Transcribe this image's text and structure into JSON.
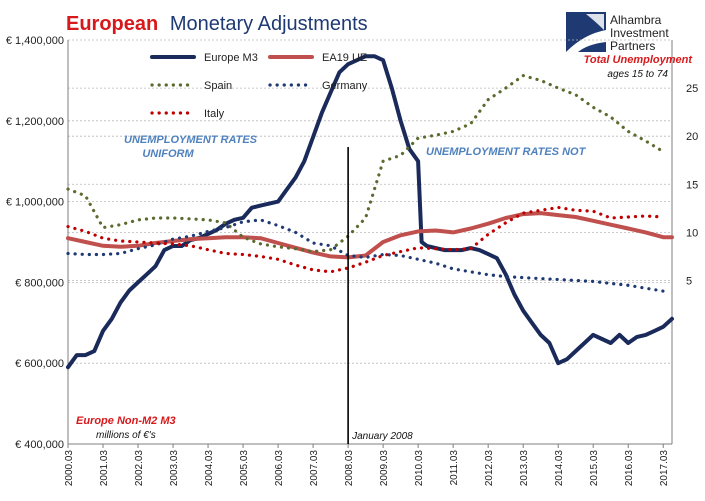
{
  "title": {
    "part1": "European",
    "part2": "Monetary Adjustments",
    "part1_color": "#d7191c",
    "part2_color": "#1f3a73"
  },
  "logo": {
    "lines": [
      "Alhambra",
      "Investment",
      "Partners"
    ],
    "mark_color": "#1f3a73"
  },
  "colors": {
    "m3": "#1a2a5a",
    "ea19": "#c0504d",
    "spain": "#5b6b2f",
    "germany": "#1f3a73",
    "italy": "#c00000",
    "blue_text": "#4f81bd",
    "red_text": "#d7191c",
    "grid": "#b9b9b9"
  },
  "annotations": {
    "unemp_uniform_1": "UNEMPLOYMENT RATES",
    "unemp_uniform_2": "UNIFORM",
    "unemp_not": "UNEMPLOYMENT RATES NOT",
    "total_unemp": "Total Unemployment",
    "ages": "ages 15  to 74",
    "m3_label": "Europe Non-M2 M3",
    "m3_units": "millions of €'s",
    "jan2008": "January 2008"
  },
  "chart_data": {
    "type": "line",
    "x_ticks": [
      "2000.03",
      "2001.03",
      "2002.03",
      "2003.03",
      "2004.03",
      "2005.03",
      "2006.03",
      "2007.03",
      "2008.03",
      "2009.03",
      "2010.03",
      "2011.03",
      "2012.03",
      "2013.03",
      "2014.03",
      "2015.03",
      "2016.03",
      "2017.03"
    ],
    "x_range": [
      2000.0,
      2017.25
    ],
    "event_line_x": 2008.0,
    "left_axis": {
      "ylim": [
        400000,
        1400000
      ],
      "ticks": [
        400000,
        600000,
        800000,
        1000000,
        1200000,
        1400000
      ],
      "tick_labels": [
        "€ 400,000",
        "€ 600,000",
        "€ 800,000",
        "€ 1,000,000",
        "€ 1,200,000",
        "€ 1,400,000"
      ]
    },
    "right_axis": {
      "ylim": [
        -12,
        30
      ],
      "ticks": [
        5,
        10,
        15,
        20,
        25
      ],
      "tick_labels": [
        "5",
        "10",
        "15",
        "20",
        "25"
      ]
    },
    "grid": true,
    "legend": [
      {
        "name": "Europe M3",
        "style": "solid-thick"
      },
      {
        "name": "EA19 UE",
        "style": "solid-thick"
      },
      {
        "name": "Spain",
        "style": "dotted"
      },
      {
        "name": "Germany",
        "style": "dotted"
      },
      {
        "name": "Italy",
        "style": "dotted"
      }
    ],
    "series": [
      {
        "name": "Europe M3",
        "axis": "left",
        "x": [
          2000.0,
          2000.25,
          2000.5,
          2000.75,
          2001.0,
          2001.25,
          2001.5,
          2001.75,
          2002.0,
          2002.25,
          2002.5,
          2002.75,
          2003.0,
          2003.25,
          2003.5,
          2003.75,
          2004.0,
          2004.25,
          2004.5,
          2004.75,
          2005.0,
          2005.25,
          2005.5,
          2005.75,
          2006.0,
          2006.25,
          2006.5,
          2006.75,
          2007.0,
          2007.25,
          2007.5,
          2007.75,
          2008.0,
          2008.25,
          2008.5,
          2008.75,
          2009.0,
          2009.25,
          2009.5,
          2009.75,
          2010.0,
          2010.1,
          2010.25,
          2010.5,
          2010.75,
          2011.0,
          2011.25,
          2011.5,
          2011.75,
          2012.0,
          2012.25,
          2012.5,
          2012.75,
          2013.0,
          2013.25,
          2013.5,
          2013.75,
          2014.0,
          2014.25,
          2014.5,
          2014.75,
          2015.0,
          2015.25,
          2015.5,
          2015.75,
          2016.0,
          2016.25,
          2016.5,
          2016.75,
          2017.0,
          2017.25
        ],
        "values": [
          590000,
          620000,
          620000,
          630000,
          680000,
          710000,
          750000,
          780000,
          800000,
          820000,
          840000,
          880000,
          890000,
          890000,
          905000,
          910000,
          920000,
          930000,
          945000,
          955000,
          960000,
          985000,
          990000,
          995000,
          1000000,
          1030000,
          1060000,
          1100000,
          1160000,
          1220000,
          1270000,
          1320000,
          1340000,
          1350000,
          1360000,
          1360000,
          1350000,
          1280000,
          1200000,
          1130000,
          1100000,
          900000,
          890000,
          885000,
          880000,
          880000,
          880000,
          885000,
          880000,
          870000,
          860000,
          820000,
          770000,
          730000,
          700000,
          670000,
          650000,
          600000,
          610000,
          630000,
          650000,
          670000,
          660000,
          650000,
          670000,
          650000,
          665000,
          670000,
          680000,
          690000,
          710000
        ]
      },
      {
        "name": "EA19 UE",
        "axis": "right",
        "x": [
          2000.0,
          2000.5,
          2001.0,
          2001.5,
          2002.0,
          2002.5,
          2003.0,
          2003.5,
          2004.0,
          2004.5,
          2005.0,
          2005.5,
          2006.0,
          2006.5,
          2007.0,
          2007.5,
          2008.0,
          2008.5,
          2009.0,
          2009.5,
          2010.0,
          2010.5,
          2011.0,
          2011.5,
          2012.0,
          2012.5,
          2013.0,
          2013.5,
          2014.0,
          2014.5,
          2015.0,
          2015.5,
          2016.0,
          2016.5,
          2017.0,
          2017.25
        ],
        "values": [
          9.4,
          9.0,
          8.6,
          8.5,
          8.6,
          8.9,
          9.1,
          9.3,
          9.4,
          9.5,
          9.5,
          9.4,
          8.9,
          8.4,
          7.9,
          7.5,
          7.4,
          7.6,
          9.0,
          9.7,
          10.1,
          10.2,
          10.0,
          10.4,
          10.9,
          11.5,
          11.9,
          12.0,
          11.8,
          11.6,
          11.2,
          10.8,
          10.4,
          10.0,
          9.5,
          9.5
        ]
      },
      {
        "name": "Spain",
        "axis": "right",
        "x": [
          2000.0,
          2000.5,
          2001.0,
          2001.5,
          2002.0,
          2002.5,
          2003.0,
          2003.5,
          2004.0,
          2004.5,
          2005.0,
          2005.5,
          2006.0,
          2006.5,
          2007.0,
          2007.5,
          2008.0,
          2008.5,
          2009.0,
          2009.5,
          2010.0,
          2010.5,
          2011.0,
          2011.5,
          2012.0,
          2012.5,
          2013.0,
          2013.5,
          2014.0,
          2014.5,
          2015.0,
          2015.5,
          2016.0,
          2016.5,
          2017.0
        ],
        "values": [
          14.5,
          13.8,
          10.5,
          10.8,
          11.3,
          11.5,
          11.5,
          11.4,
          11.3,
          11.0,
          9.5,
          8.8,
          8.5,
          8.3,
          8.0,
          8.2,
          9.6,
          11.5,
          17.4,
          18.0,
          19.8,
          20.1,
          20.5,
          21.3,
          23.8,
          25.0,
          26.3,
          25.8,
          25.0,
          24.3,
          23.0,
          22.0,
          20.5,
          19.5,
          18.4
        ]
      },
      {
        "name": "Germany",
        "axis": "right",
        "x": [
          2000.0,
          2000.5,
          2001.0,
          2001.5,
          2002.0,
          2002.5,
          2003.0,
          2003.5,
          2004.0,
          2004.5,
          2005.0,
          2005.5,
          2006.0,
          2006.5,
          2007.0,
          2007.5,
          2008.0,
          2008.5,
          2009.0,
          2009.5,
          2010.0,
          2010.5,
          2011.0,
          2011.5,
          2012.0,
          2012.5,
          2013.0,
          2013.5,
          2014.0,
          2014.5,
          2015.0,
          2015.5,
          2016.0,
          2016.5,
          2017.0
        ],
        "values": [
          7.8,
          7.7,
          7.7,
          7.8,
          8.3,
          8.7,
          9.3,
          9.6,
          10.1,
          10.5,
          11.1,
          11.3,
          10.7,
          10.0,
          8.9,
          8.6,
          7.6,
          7.4,
          7.7,
          7.6,
          7.2,
          6.8,
          6.2,
          5.9,
          5.6,
          5.4,
          5.3,
          5.2,
          5.1,
          5.0,
          4.9,
          4.7,
          4.5,
          4.2,
          3.9
        ]
      },
      {
        "name": "Italy",
        "axis": "right",
        "x": [
          2000.0,
          2000.5,
          2001.0,
          2001.5,
          2002.0,
          2002.5,
          2003.0,
          2003.5,
          2004.0,
          2004.5,
          2005.0,
          2005.5,
          2006.0,
          2006.5,
          2007.0,
          2007.5,
          2008.0,
          2008.5,
          2009.0,
          2009.5,
          2010.0,
          2010.5,
          2011.0,
          2011.5,
          2012.0,
          2012.5,
          2013.0,
          2013.5,
          2014.0,
          2014.5,
          2015.0,
          2015.5,
          2016.0,
          2016.5,
          2017.0
        ],
        "values": [
          10.6,
          10.1,
          9.4,
          9.1,
          9.0,
          8.9,
          8.8,
          8.6,
          8.2,
          7.8,
          7.7,
          7.5,
          7.2,
          6.6,
          6.1,
          5.9,
          6.3,
          6.9,
          7.6,
          8.0,
          8.4,
          8.3,
          8.2,
          8.3,
          9.8,
          11.0,
          12.0,
          12.3,
          12.6,
          12.3,
          12.2,
          11.5,
          11.6,
          11.7,
          11.6
        ]
      }
    ]
  }
}
